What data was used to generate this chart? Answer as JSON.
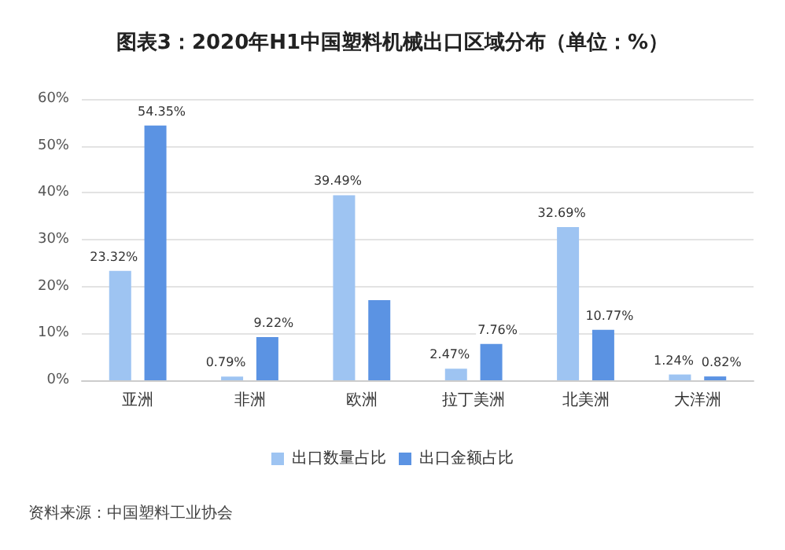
{
  "chart_data": {
    "type": "bar",
    "title": "图表3：2020年H1中国塑料机械出口区域分布（单位：%）",
    "categories": [
      "亚洲",
      "非洲",
      "欧洲",
      "拉丁美洲",
      "北美洲",
      "大洋洲"
    ],
    "series": [
      {
        "name": "出口数量占比",
        "color": "#9ec4f2",
        "values": [
          23.32,
          0.79,
          39.49,
          2.47,
          32.69,
          1.24
        ],
        "value_labels": [
          "23.32%",
          "0.79%",
          "39.49%",
          "2.47%",
          "32.69%",
          "1.24%"
        ]
      },
      {
        "name": "出口金额占比",
        "color": "#5b93e3",
        "values": [
          54.35,
          9.22,
          17.1,
          7.76,
          10.77,
          0.82
        ],
        "value_labels": [
          "54.35%",
          "9.22%",
          null,
          "7.76%",
          "10.77%",
          "0.82%"
        ]
      }
    ],
    "ylim": [
      0,
      60
    ],
    "yticks": [
      {
        "value": 0,
        "label": "0%"
      },
      {
        "value": 10,
        "label": "10%"
      },
      {
        "value": 20,
        "label": "20%"
      },
      {
        "value": 30,
        "label": "30%"
      },
      {
        "value": 40,
        "label": "40%"
      },
      {
        "value": 50,
        "label": "50%"
      },
      {
        "value": 60,
        "label": "60%"
      }
    ],
    "grid": "y",
    "legend": "bottom",
    "annotations": [
      "资料来源：中国塑料工业协会"
    ]
  }
}
